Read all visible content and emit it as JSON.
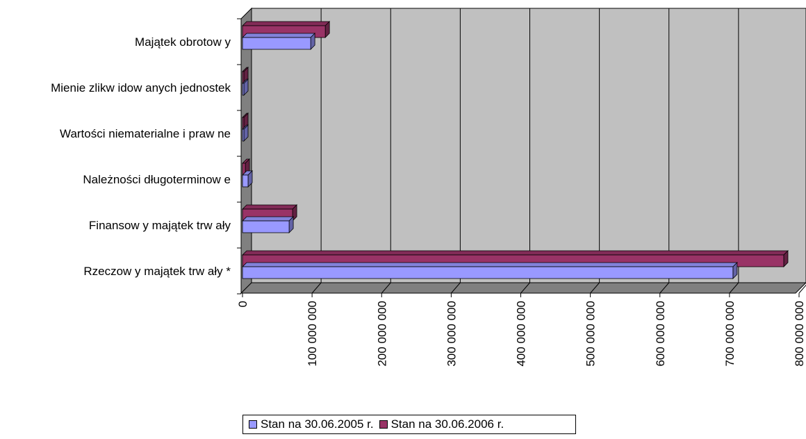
{
  "chart_data": {
    "type": "bar",
    "orientation": "horizontal",
    "categories": [
      "Rzeczow y majątek trw ały *",
      "Finansow y majątek trw ały",
      "Należności długoterminow e",
      "Wartości niematerialne i praw ne",
      "Mienie zlikw idow anych jednostek",
      "Majątek obrotow y"
    ],
    "series": [
      {
        "name": "Stan na 30.06.2005 r.",
        "color": "#9999ff",
        "values": [
          705000000,
          67000000,
          8000000,
          2000000,
          2000000,
          98000000
        ]
      },
      {
        "name": "Stan na 30.06.2006 r.",
        "color": "#993366",
        "values": [
          778000000,
          72000000,
          4000000,
          2000000,
          2000000,
          119000000
        ]
      }
    ],
    "x_ticks": [
      "0",
      "100 000 000",
      "200 000 000",
      "300 000 000",
      "400 000 000",
      "500 000 000",
      "600 000 000",
      "700 000 000",
      "800 000 000"
    ],
    "xlim": [
      0,
      800000000
    ],
    "grid": true,
    "legend_position": "bottom"
  }
}
